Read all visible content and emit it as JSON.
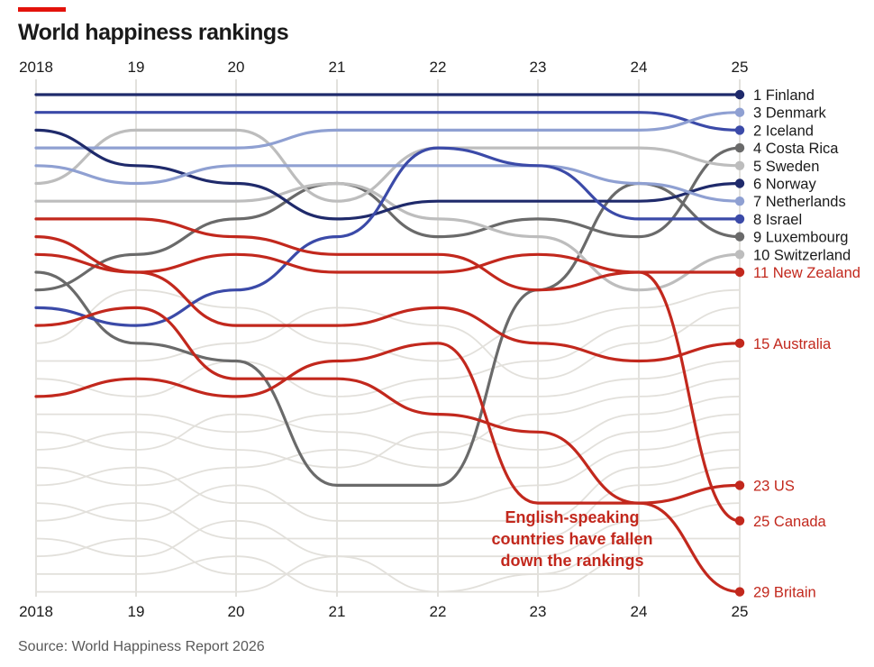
{
  "title": "World happiness rankings",
  "source": "Source: World Happiness Report 2026",
  "annotation": [
    "English-speaking",
    "countries have fallen",
    "down the rankings"
  ],
  "colors": {
    "accent": "#e3120b",
    "english": "#c2281d",
    "background_lines": "#e2e0db",
    "navy": "#1f2a6b",
    "blue": "#3b4aa8",
    "lightblue": "#8fa0d2",
    "gray": "#6a6a6a",
    "lightgray": "#bdbdbd"
  },
  "chart_data": {
    "type": "line",
    "x": [
      "2018",
      "19",
      "20",
      "21",
      "22",
      "23",
      "24",
      "25"
    ],
    "ylim": [
      1,
      29
    ],
    "y_reversed": true,
    "series": [
      {
        "name": "Finland",
        "label": "1 Finland",
        "color": "#1f2a6b",
        "values": [
          1,
          1,
          1,
          1,
          1,
          1,
          1,
          1
        ]
      },
      {
        "name": "Iceland",
        "label": "2 Iceland",
        "color": "#3b4aa8",
        "values": [
          2,
          2,
          2,
          2,
          2,
          2,
          2,
          3
        ]
      },
      {
        "name": "Denmark",
        "label": "3 Denmark",
        "color": "#8fa0d2",
        "values": [
          4,
          4,
          4,
          3,
          3,
          3,
          3,
          2
        ]
      },
      {
        "name": "Costa Rica",
        "label": "4 Costa Rica",
        "color": "#6a6a6a",
        "values": [
          12,
          10,
          8,
          6,
          9,
          8,
          9,
          4
        ]
      },
      {
        "name": "Sweden",
        "label": "5 Sweden",
        "color": "#bdbdbd",
        "values": [
          6,
          3,
          3,
          7,
          4,
          4,
          4,
          5
        ]
      },
      {
        "name": "Norway",
        "label": "6 Norway",
        "color": "#1f2a6b",
        "values": [
          3,
          5,
          6,
          8,
          7,
          7,
          7,
          6
        ]
      },
      {
        "name": "Netherlands",
        "label": "7 Netherlands",
        "color": "#8fa0d2",
        "values": [
          5,
          6,
          5,
          5,
          5,
          5,
          6,
          7
        ]
      },
      {
        "name": "Israel",
        "label": "8 Israel",
        "color": "#3b4aa8",
        "values": [
          13,
          14,
          12,
          9,
          4,
          5,
          8,
          8
        ]
      },
      {
        "name": "Luxembourg",
        "label": "9 Luxembourg",
        "color": "#6a6a6a",
        "values": [
          11,
          15,
          16,
          23,
          23,
          12,
          6,
          9
        ]
      },
      {
        "name": "Switzerland",
        "label": "10 Switzerland",
        "color": "#bdbdbd",
        "values": [
          7,
          7,
          7,
          6,
          8,
          9,
          12,
          10
        ]
      },
      {
        "name": "New Zealand",
        "label": "11 New Zealand",
        "color": "#c2281d",
        "values": [
          10,
          11,
          10,
          11,
          11,
          10,
          11,
          11
        ]
      },
      {
        "name": "Australia",
        "label": "15 Australia",
        "color": "#c2281d",
        "values": [
          9,
          11,
          14,
          14,
          13,
          15,
          16,
          15
        ]
      },
      {
        "name": "US",
        "label": "23 US",
        "color": "#c2281d",
        "values": [
          18,
          17,
          18,
          16,
          15,
          24,
          24,
          23
        ]
      },
      {
        "name": "Canada",
        "label": "25 Canada",
        "color": "#c2281d",
        "values": [
          8,
          8,
          9,
          10,
          10,
          12,
          11,
          25
        ]
      },
      {
        "name": "Britain",
        "label": "29 Britain",
        "color": "#c2281d",
        "values": [
          14,
          13,
          17,
          17,
          19,
          20,
          24,
          29
        ]
      }
    ],
    "background_series": [
      [
        15,
        12,
        13,
        15,
        16,
        14,
        13,
        12
      ],
      [
        16,
        16,
        15,
        13,
        14,
        17,
        15,
        13
      ],
      [
        17,
        18,
        16,
        18,
        17,
        16,
        14,
        14
      ],
      [
        19,
        19,
        20,
        19,
        18,
        18,
        17,
        16
      ],
      [
        20,
        21,
        19,
        20,
        21,
        19,
        18,
        17
      ],
      [
        21,
        20,
        21,
        22,
        20,
        21,
        19,
        18
      ],
      [
        22,
        23,
        22,
        21,
        22,
        22,
        20,
        19
      ],
      [
        23,
        22,
        24,
        24,
        24,
        23,
        21,
        20
      ],
      [
        24,
        25,
        23,
        25,
        25,
        25,
        22,
        21
      ],
      [
        25,
        24,
        26,
        26,
        26,
        26,
        23,
        22
      ],
      [
        26,
        27,
        25,
        27,
        27,
        27,
        25,
        24
      ],
      [
        27,
        26,
        28,
        28,
        28,
        28,
        26,
        26
      ],
      [
        28,
        28,
        27,
        29,
        29,
        29,
        27,
        27
      ],
      [
        29,
        29,
        29,
        27,
        29,
        28,
        28,
        28
      ]
    ]
  }
}
